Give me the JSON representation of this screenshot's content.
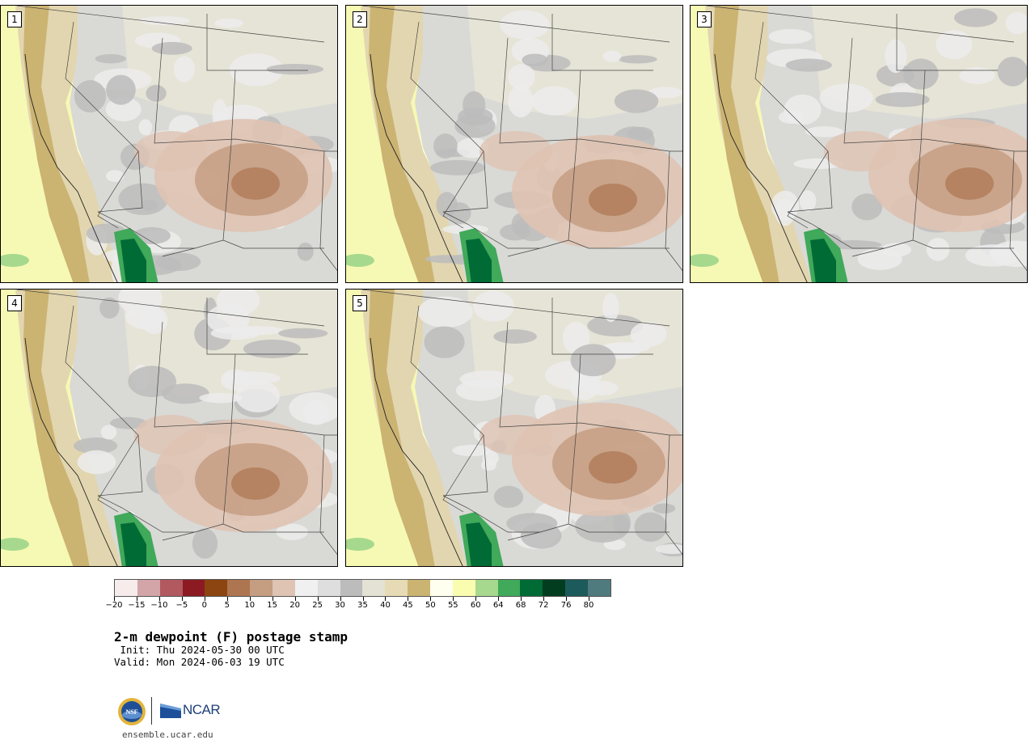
{
  "panels": [
    {
      "label": "1"
    },
    {
      "label": "2"
    },
    {
      "label": "3"
    },
    {
      "label": "4"
    },
    {
      "label": "5"
    }
  ],
  "colorbar": {
    "colors": [
      "#f7ecec",
      "#d4a5a8",
      "#b2585f",
      "#8b1a22",
      "#8c4510",
      "#ad7550",
      "#c59e82",
      "#dfc3b3",
      "#f0f0f0",
      "#dedede",
      "#bcbcbc",
      "#e3e2d5",
      "#e7dbb5",
      "#cbb372",
      "#fffff0",
      "#fafcb0",
      "#a6d98e",
      "#40a95a",
      "#006b35",
      "#023d1f",
      "#1c5a5c",
      "#4f7b7e"
    ],
    "ticks": [
      "−20",
      "−15",
      "−10",
      "−5",
      "0",
      "5",
      "10",
      "15",
      "20",
      "25",
      "30",
      "35",
      "40",
      "45",
      "50",
      "55",
      "60",
      "64",
      "68",
      "72",
      "76",
      "80"
    ]
  },
  "title": "2-m dewpoint (F) postage stamp",
  "init": " Init: Thu 2024-05-30 00 UTC",
  "valid": "Valid: Mon 2024-06-03 19 UTC",
  "logo": {
    "nsf": "NSF",
    "ncar": "NCAR"
  },
  "url": "ensemble.ucar.edu"
}
